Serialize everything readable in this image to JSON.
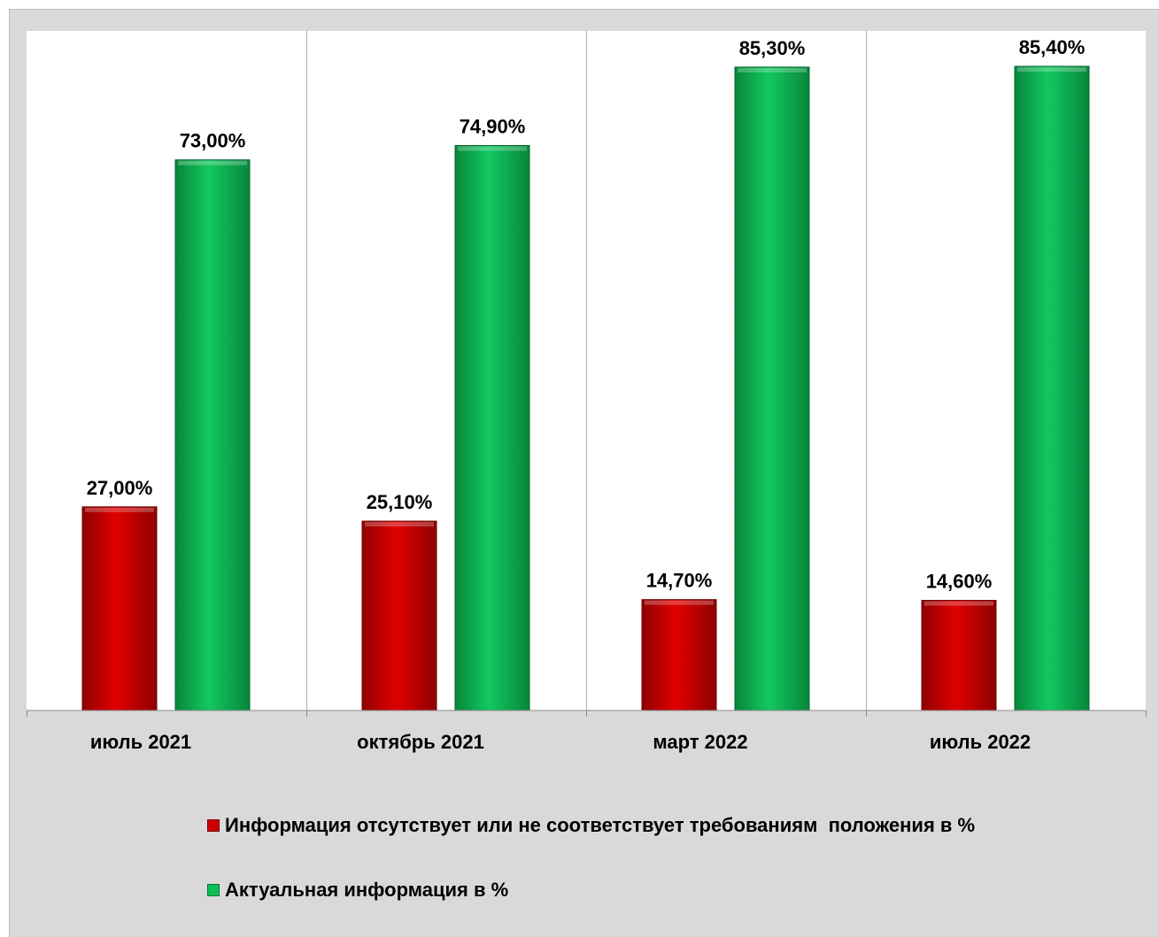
{
  "chart_data": {
    "type": "bar",
    "categories": [
      "июль 2021",
      "октябрь 2021",
      "март 2022",
      "июль 2022"
    ],
    "series": [
      {
        "name": "Информация отсутствует или не соответствует требованиям  положения в %",
        "values": [
          27.0,
          25.1,
          14.7,
          14.6
        ],
        "labels": [
          "27,00%",
          "25,10%",
          "14,70%",
          "14,60%"
        ],
        "color": "#cc0000"
      },
      {
        "name": "Актуальная информация в %",
        "values": [
          73.0,
          74.9,
          85.3,
          85.4
        ],
        "labels": [
          "73,00%",
          "74,90%",
          "85,30%",
          "85,40%"
        ],
        "color": "#0dbd57"
      }
    ],
    "ylim": [
      0,
      90
    ],
    "grid": "vertical separators",
    "legend_position": "bottom",
    "plot_background": "#ffffff",
    "frame_background": "#d9d9d9"
  }
}
